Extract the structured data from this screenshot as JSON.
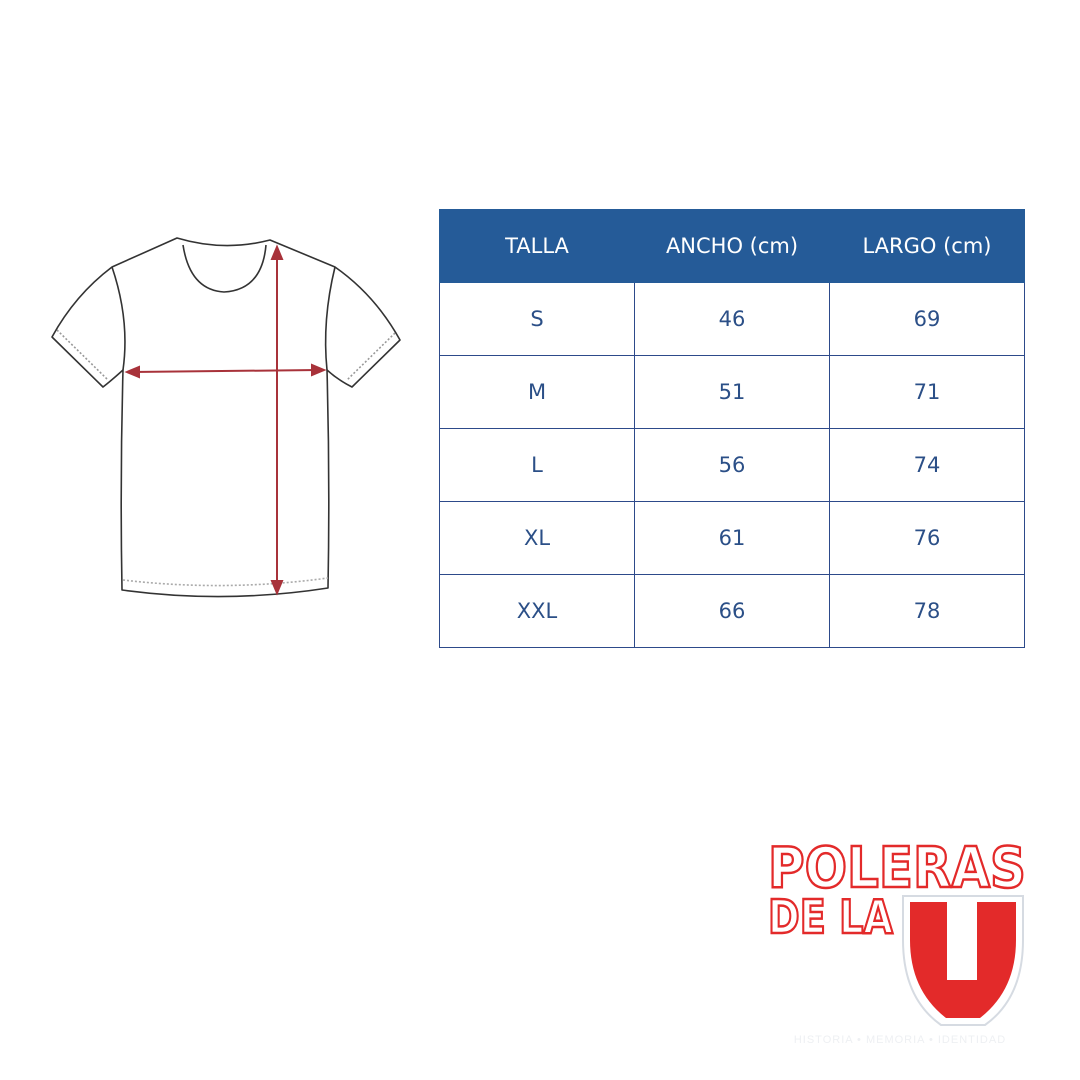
{
  "colors": {
    "header_bg": "#255b98",
    "grid_line": "#2d4a8a",
    "cell_text": "#2b4f87",
    "arrow": "#a8323a",
    "logo_red": "#e32a2a"
  },
  "table": {
    "headers": [
      "TALLA",
      "ANCHO (cm)",
      "LARGO (cm)"
    ],
    "rows": [
      [
        "S",
        "46",
        "69"
      ],
      [
        "M",
        "51",
        "71"
      ],
      [
        "L",
        "56",
        "74"
      ],
      [
        "XL",
        "61",
        "76"
      ],
      [
        "XXL",
        "66",
        "78"
      ]
    ]
  },
  "diagram": {
    "icon": "t-shirt-measurement-icon"
  },
  "logo": {
    "line1": "POLERAS",
    "line2": "DE LA",
    "letter": "U",
    "tagline": "HISTORIA • MEMORIA • IDENTIDAD"
  }
}
